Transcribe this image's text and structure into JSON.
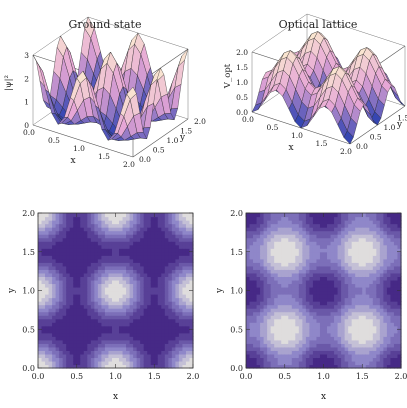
{
  "chart_data": [
    {
      "id": "ground_state_surface",
      "type": "surface3d",
      "title": "Ground state",
      "xlabel": "x",
      "ylabel": "y",
      "zlabel": "|ψ|²",
      "xlim": [
        0,
        2
      ],
      "ylim": [
        0,
        2
      ],
      "zlim": [
        0,
        3
      ],
      "x_ticks": [
        "0.0",
        "0.5",
        "1.0",
        "1.5",
        "2.0"
      ],
      "y_ticks": [
        "0.0",
        "0.5",
        "1.0",
        "1.5",
        "2.0"
      ],
      "z_ticks": [
        "0",
        "1",
        "2",
        "3"
      ],
      "peaks": [
        [
          0,
          0
        ],
        [
          1,
          0
        ],
        [
          2,
          0
        ],
        [
          0,
          1
        ],
        [
          1,
          1
        ],
        [
          2,
          1
        ],
        [
          0,
          2
        ],
        [
          1,
          2
        ],
        [
          2,
          2
        ]
      ],
      "peak_height": 3,
      "period": 1
    },
    {
      "id": "optical_lattice_surface",
      "type": "surface3d",
      "title": "Optical lattice",
      "xlabel": "x",
      "ylabel": "y",
      "zlabel": "V_opt",
      "xlim": [
        0,
        2
      ],
      "ylim": [
        0,
        2
      ],
      "zlim": [
        0,
        2
      ],
      "x_ticks": [
        "0.0",
        "0.5",
        "1.0",
        "1.5",
        "2.0"
      ],
      "y_ticks": [
        "0.0",
        "0.5",
        "1.0",
        "1.5",
        "2.0"
      ],
      "z_ticks": [
        "0.0",
        "0.5",
        "1.0",
        "1.5",
        "2.0"
      ],
      "maxima": [
        [
          0.5,
          0.5
        ],
        [
          1.5,
          0.5
        ],
        [
          0.5,
          1.5
        ],
        [
          1.5,
          1.5
        ]
      ],
      "peak_height": 2,
      "period": 1
    },
    {
      "id": "ground_state_contour",
      "type": "contour",
      "xlabel": "x",
      "ylabel": "y",
      "xlim": [
        0,
        2
      ],
      "ylim": [
        0,
        2
      ],
      "x_ticks": [
        "0.0",
        "0.5",
        "1.0",
        "1.5",
        "2.0"
      ],
      "y_ticks": [
        "0.0",
        "0.5",
        "1.0",
        "1.5",
        "2.0"
      ],
      "peaks": [
        [
          0,
          0
        ],
        [
          1,
          0
        ],
        [
          2,
          0
        ],
        [
          0,
          1
        ],
        [
          1,
          1
        ],
        [
          2,
          1
        ],
        [
          0,
          2
        ],
        [
          1,
          2
        ],
        [
          2,
          2
        ]
      ],
      "minima": [
        [
          0.5,
          0.5
        ],
        [
          1.5,
          0.5
        ],
        [
          0.5,
          1.5
        ],
        [
          1.5,
          1.5
        ]
      ]
    },
    {
      "id": "optical_lattice_contour",
      "type": "contour",
      "xlabel": "x",
      "ylabel": "y",
      "xlim": [
        0,
        2
      ],
      "ylim": [
        0,
        2
      ],
      "x_ticks": [
        "0.0",
        "0.5",
        "1.0",
        "1.5",
        "2.0"
      ],
      "y_ticks": [
        "0.0",
        "0.5",
        "1.0",
        "1.5",
        "2.0"
      ],
      "maxima": [
        [
          0.5,
          0.5
        ],
        [
          1.5,
          0.5
        ],
        [
          0.5,
          1.5
        ],
        [
          1.5,
          1.5
        ]
      ],
      "minima": [
        [
          0,
          0
        ],
        [
          1,
          0
        ],
        [
          2,
          0
        ],
        [
          0,
          1
        ],
        [
          1,
          1
        ],
        [
          2,
          1
        ],
        [
          0,
          2
        ],
        [
          1,
          2
        ],
        [
          2,
          2
        ]
      ]
    }
  ],
  "colors": {
    "contour_low": "#3d1d7e",
    "contour_mid": "#8c84c8",
    "contour_high": "#ecebe0",
    "surface_low": "#2a3fb0",
    "surface_mid": "#e6a6d6",
    "surface_high": "#fbe9d0",
    "surface_peak_dark": "#8e1440",
    "mesh_line": "#222222"
  }
}
